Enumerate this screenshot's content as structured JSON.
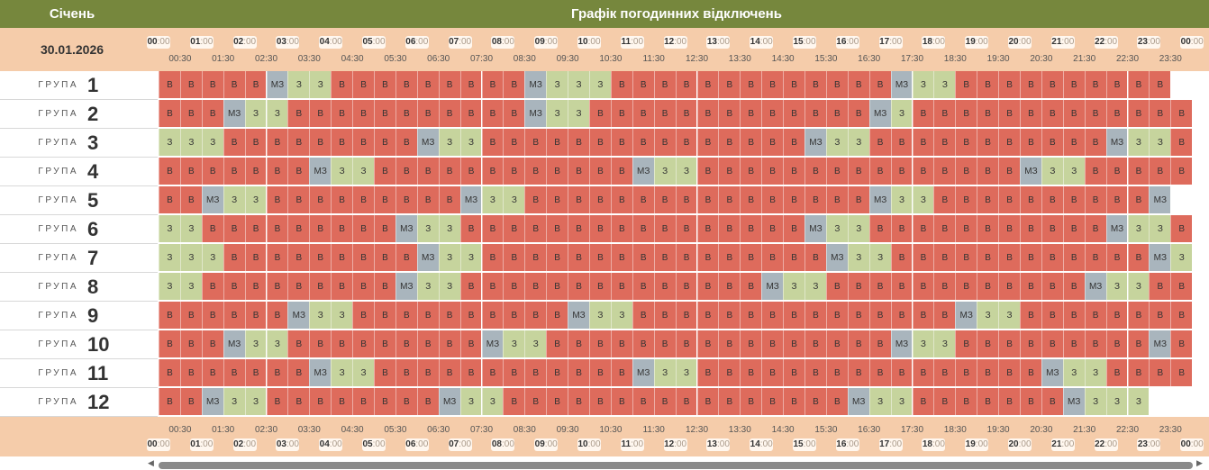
{
  "header": {
    "month": "Січень",
    "title": "Графік погодинних відключень"
  },
  "date": "30.01.2026",
  "hours": [
    "00",
    "01",
    "02",
    "03",
    "04",
    "05",
    "06",
    "07",
    "08",
    "09",
    "10",
    "11",
    "12",
    "13",
    "14",
    "15",
    "16",
    "17",
    "18",
    "19",
    "20",
    "21",
    "22",
    "23",
    "00"
  ],
  "minutes": ":00",
  "halves": [
    "00:30",
    "01:30",
    "02:30",
    "03:30",
    "04:30",
    "05:30",
    "06:30",
    "07:30",
    "08:30",
    "09:30",
    "10:30",
    "11:30",
    "12:30",
    "13:30",
    "14:30",
    "15:30",
    "16:30",
    "17:30",
    "18:30",
    "19:30",
    "20:30",
    "21:30",
    "22:30",
    "23:30"
  ],
  "group_word": "ГРУПА",
  "legend": {
    "v": "В",
    "z": "З",
    "mz": "МЗ"
  },
  "colors": {
    "v": "#de6b5c",
    "z": "#c6d49d",
    "mz": "#a9b5bd",
    "header": "#76873d",
    "timebar": "#f5ccaa"
  },
  "groups": [
    {
      "num": "1",
      "cells": "vvvvvmzzzvvvvvvvvvmzzzzvvvvvvvvvvvvvmzzzvvvvvvvvvv"
    },
    {
      "num": "2",
      "cells": "vvvmzzzvvvvvvvvvvvmzzzvvvvvvvvvvvvvmzzvvvvvvvvvvvvv"
    },
    {
      "num": "3",
      "cells": "zzzvvvvvvvvvmzzzvvvvvvvvvvvvvvvmzzzvvvvvvvvvvvmzzzvv"
    },
    {
      "num": "4",
      "cells": "vvvvvvvmzzzvvvvvvvvvvvvmzzzvvvvvvvvvvvvvvvmzzzvvvvv"
    },
    {
      "num": "5",
      "cells": "vvmzzzvvvvvvvvvmzzzvvvvvvvvvvvvvvvvmzzzvvvvvvvvvvmz"
    },
    {
      "num": "6",
      "cells": "zzvvvvvvvvvmzzzvvvvvvvvvvvvvvvvmzzzvvvvvvvvvvvmzzzvv"
    },
    {
      "num": "7",
      "cells": "zzzvvvvvvvvvmzzzvvvvvvvvvvvvvvvvmzzzvvvvvvvvvvvvmzzz"
    },
    {
      "num": "8",
      "cells": "zzvvvvvvvvvmzzzvvvvvvvvvvvvvvmzzzvvvvvvvvvvvvmzzzvv"
    },
    {
      "num": "9",
      "cells": "vvvvvvmzzzvvvvvvvvvvmzzzvvvvvvvvvvvvvvvmzzzvvvvvvvvz"
    },
    {
      "num": "10",
      "cells": "vvvmzzzvvvvvvvvvmzzzvvvvvvvvvvvvvvvvmzzzvvvvvvvvvmzv"
    },
    {
      "num": "11",
      "cells": "vvvvvvvmzzzvvvvvvvvvvvvmzzzvvvvvvvvvvvvvvvvmzzzvvvv"
    },
    {
      "num": "12",
      "cells": "vvmzzzvvvvvvvvmzzzvvvvvvvvvvvvvvvvmzzzvvvvvvvmzzzz"
    }
  ]
}
